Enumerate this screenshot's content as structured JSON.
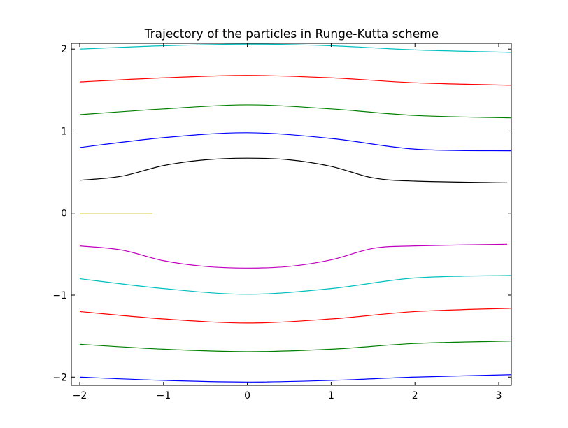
{
  "chart_data": {
    "type": "line",
    "title": "Trajectory of the particles in Runge-Kutta scheme",
    "xlabel": "",
    "ylabel": "",
    "xlim": [
      -2.1,
      3.15
    ],
    "ylim": [
      -2.1,
      2.07
    ],
    "xticks": [
      -2,
      -1,
      0,
      1,
      2,
      3
    ],
    "xtick_labels": [
      "−2",
      "−1",
      "0",
      "1",
      "2",
      "3"
    ],
    "yticks": [
      -2,
      -1,
      0,
      1,
      2
    ],
    "ytick_labels": [
      "−2",
      "−1",
      "0",
      "1",
      "2"
    ],
    "grid": false,
    "legend": "none",
    "series": [
      {
        "color": "#00bfbf",
        "x": [
          -2.0,
          -1.0,
          0.0,
          1.0,
          2.0,
          3.15
        ],
        "y": [
          2.0,
          2.04,
          2.06,
          2.04,
          1.99,
          1.96
        ]
      },
      {
        "color": "#ff0000",
        "x": [
          -2.0,
          -1.0,
          0.0,
          1.0,
          2.0,
          3.15
        ],
        "y": [
          1.6,
          1.65,
          1.68,
          1.65,
          1.59,
          1.56
        ]
      },
      {
        "color": "#008000",
        "x": [
          -2.0,
          -1.0,
          0.0,
          1.0,
          2.0,
          3.15
        ],
        "y": [
          1.2,
          1.27,
          1.32,
          1.27,
          1.19,
          1.16
        ]
      },
      {
        "color": "#0000ff",
        "x": [
          -2.0,
          -1.0,
          0.0,
          1.0,
          2.0,
          3.15
        ],
        "y": [
          0.8,
          0.92,
          0.98,
          0.91,
          0.78,
          0.76
        ]
      },
      {
        "color": "#000000",
        "x": [
          -2.0,
          -1.5,
          -1.0,
          -0.5,
          0.0,
          0.5,
          1.0,
          1.5,
          2.0,
          3.1
        ],
        "y": [
          0.4,
          0.45,
          0.58,
          0.65,
          0.67,
          0.65,
          0.57,
          0.43,
          0.39,
          0.37
        ]
      },
      {
        "color": "#bfbf00",
        "x": [
          -2.0,
          -1.13
        ],
        "y": [
          0.0,
          0.0
        ]
      },
      {
        "color": "#bf00bf",
        "x": [
          -2.0,
          -1.5,
          -1.0,
          -0.5,
          0.0,
          0.5,
          1.0,
          1.5,
          2.0,
          3.1
        ],
        "y": [
          -0.4,
          -0.45,
          -0.58,
          -0.65,
          -0.67,
          -0.65,
          -0.57,
          -0.43,
          -0.4,
          -0.38
        ]
      },
      {
        "color": "#00bfbf",
        "x": [
          -2.0,
          -1.0,
          0.0,
          1.0,
          2.0,
          3.15
        ],
        "y": [
          -0.8,
          -0.92,
          -0.99,
          -0.92,
          -0.79,
          -0.76
        ]
      },
      {
        "color": "#ff0000",
        "x": [
          -2.0,
          -1.0,
          0.0,
          1.0,
          2.0,
          3.15
        ],
        "y": [
          -1.2,
          -1.29,
          -1.34,
          -1.29,
          -1.2,
          -1.16
        ]
      },
      {
        "color": "#008000",
        "x": [
          -2.0,
          -1.0,
          0.0,
          1.0,
          2.0,
          3.15
        ],
        "y": [
          -1.6,
          -1.66,
          -1.69,
          -1.66,
          -1.59,
          -1.56
        ]
      },
      {
        "color": "#0000ff",
        "x": [
          -2.0,
          -1.0,
          0.0,
          1.0,
          2.0,
          3.15
        ],
        "y": [
          -2.0,
          -2.04,
          -2.06,
          -2.04,
          -2.0,
          -1.97
        ]
      }
    ]
  }
}
